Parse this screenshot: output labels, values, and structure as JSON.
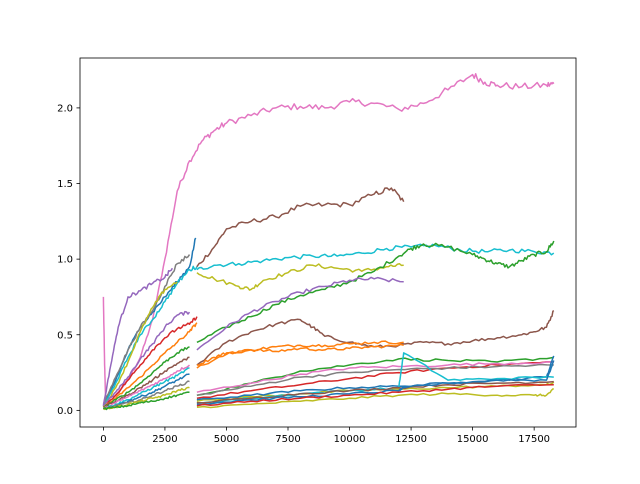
{
  "chart_data": {
    "type": "line",
    "title": "",
    "xlabel": "",
    "ylabel": "",
    "xlim": [
      -950,
      19200
    ],
    "ylim": [
      -0.11,
      2.33
    ],
    "x_ticks": [
      0,
      2500,
      5000,
      7500,
      10000,
      12500,
      15000,
      17500
    ],
    "x_tick_labels": [
      "0",
      "2500",
      "5000",
      "7500",
      "10000",
      "12500",
      "15000",
      "17500"
    ],
    "y_ticks": [
      0.0,
      0.5,
      1.0,
      1.5,
      2.0
    ],
    "y_tick_labels": [
      "0.0",
      "0.5",
      "1.0",
      "1.5",
      "2.0"
    ],
    "grid": false,
    "legend": "none",
    "series": [
      {
        "color": "#e377c2",
        "x": [
          0,
          50,
          100
        ],
        "y": [
          0.75,
          0.3,
          0.02
        ]
      },
      {
        "color": "#e377c2",
        "x": [
          0,
          500,
          1000,
          1500,
          2000,
          2500,
          3000,
          3500,
          4000,
          4500,
          5000,
          6000,
          7000,
          8000,
          9000,
          10000,
          11000,
          12000,
          13000,
          14000,
          15000,
          15500,
          16000,
          17000,
          18000,
          18300
        ],
        "y": [
          0.05,
          0.1,
          0.2,
          0.35,
          0.6,
          1.0,
          1.45,
          1.65,
          1.78,
          1.85,
          1.9,
          1.95,
          2.0,
          2.01,
          2.0,
          2.04,
          2.03,
          1.99,
          2.03,
          2.12,
          2.22,
          2.17,
          2.15,
          2.14,
          2.15,
          2.16
        ]
      },
      {
        "color": "#8c564b",
        "x": [
          3800,
          4500,
          5000,
          6000,
          7000,
          8000,
          9000,
          10000,
          11000,
          11700,
          12200
        ],
        "y": [
          0.95,
          1.08,
          1.2,
          1.25,
          1.28,
          1.35,
          1.36,
          1.36,
          1.43,
          1.47,
          1.38
        ]
      },
      {
        "color": "#17becf",
        "x": [
          3800,
          4500,
          5500,
          6500,
          7500,
          8500,
          9500,
          10500,
          11500,
          12500,
          13500,
          14500,
          15500,
          16500,
          17500,
          18300
        ],
        "y": [
          0.93,
          0.96,
          0.97,
          0.99,
          1.01,
          1.02,
          1.02,
          1.04,
          1.07,
          1.08,
          1.09,
          1.06,
          1.05,
          1.06,
          1.05,
          1.04
        ]
      },
      {
        "color": "#bcbd22",
        "x": [
          3800,
          4500,
          5500,
          6000,
          6500,
          7500,
          8500,
          9500,
          10500,
          11500,
          12200
        ],
        "y": [
          0.91,
          0.87,
          0.82,
          0.8,
          0.86,
          0.91,
          0.96,
          0.94,
          0.92,
          0.95,
          0.96
        ]
      },
      {
        "color": "#2ca02c",
        "x": [
          3800,
          5000,
          6000,
          7000,
          8000,
          9000,
          10000,
          11000,
          12000,
          12500,
          13000,
          14000,
          15000,
          15500,
          16000,
          16500,
          17000,
          17500,
          18000,
          18300
        ],
        "y": [
          0.45,
          0.55,
          0.62,
          0.7,
          0.76,
          0.8,
          0.85,
          0.92,
          1.02,
          1.07,
          1.1,
          1.08,
          1.03,
          1.0,
          0.97,
          0.95,
          0.99,
          1.03,
          1.05,
          1.12
        ]
      },
      {
        "color": "#9467bd",
        "x": [
          3800,
          5000,
          6000,
          7000,
          8000,
          9000,
          10000,
          11000,
          12200
        ],
        "y": [
          0.4,
          0.55,
          0.65,
          0.72,
          0.78,
          0.82,
          0.86,
          0.87,
          0.85
        ]
      },
      {
        "color": "#8c564b",
        "x": [
          3800,
          5000,
          6000,
          7000,
          8000,
          8500,
          9000,
          10000,
          11000,
          12000,
          13000,
          14000,
          15000,
          16000,
          17000,
          17500,
          18000,
          18300
        ],
        "y": [
          0.3,
          0.45,
          0.52,
          0.57,
          0.6,
          0.55,
          0.49,
          0.45,
          0.42,
          0.43,
          0.45,
          0.44,
          0.46,
          0.48,
          0.5,
          0.52,
          0.55,
          0.66
        ]
      },
      {
        "color": "#ff7f0e",
        "x": [
          3800,
          4500,
          5000,
          6000,
          7000,
          8000,
          9000,
          10000,
          11000,
          12200
        ],
        "y": [
          0.3,
          0.35,
          0.38,
          0.4,
          0.42,
          0.43,
          0.43,
          0.44,
          0.45,
          0.45
        ]
      },
      {
        "color": "#ff7f0e",
        "x": [
          3800,
          5000,
          6000,
          7000,
          8000,
          9000,
          10000,
          11000,
          12200
        ],
        "y": [
          0.28,
          0.37,
          0.4,
          0.39,
          0.41,
          0.4,
          0.41,
          0.42,
          0.43
        ]
      },
      {
        "color": "#2ca02c",
        "x": [
          3800,
          6000,
          8000,
          10000,
          12000,
          14000,
          16000,
          18300
        ],
        "y": [
          0.1,
          0.18,
          0.26,
          0.3,
          0.34,
          0.33,
          0.32,
          0.35
        ]
      },
      {
        "color": "#d62728",
        "x": [
          3800,
          6000,
          8000,
          10000,
          12000,
          14000,
          16000,
          18300
        ],
        "y": [
          0.08,
          0.13,
          0.17,
          0.21,
          0.25,
          0.28,
          0.3,
          0.32
        ]
      },
      {
        "color": "#7f7f7f",
        "x": [
          3800,
          6000,
          8000,
          10000,
          12000,
          14000,
          16000,
          18300
        ],
        "y": [
          0.1,
          0.16,
          0.22,
          0.25,
          0.27,
          0.28,
          0.29,
          0.3
        ]
      },
      {
        "color": "#e377c2",
        "x": [
          3800,
          6000,
          8000,
          10000,
          12000,
          14000,
          16000,
          18300
        ],
        "y": [
          0.12,
          0.18,
          0.24,
          0.28,
          0.29,
          0.3,
          0.31,
          0.32
        ]
      },
      {
        "color": "#bcbd22",
        "x": [
          3800,
          6000,
          8000,
          10000,
          12000,
          14000,
          16000,
          18000,
          18300
        ],
        "y": [
          0.06,
          0.09,
          0.11,
          0.13,
          0.14,
          0.15,
          0.16,
          0.17,
          0.18
        ]
      },
      {
        "color": "#1f77b4",
        "x": [
          3800,
          6000,
          8000,
          10000,
          12000,
          14000,
          16000,
          18000,
          18300
        ],
        "y": [
          0.07,
          0.1,
          0.13,
          0.15,
          0.16,
          0.18,
          0.2,
          0.22,
          0.36
        ]
      },
      {
        "color": "#17becf",
        "x": [
          3800,
          6000,
          8000,
          10000,
          12000,
          12200,
          14000,
          16000,
          18300
        ],
        "y": [
          0.05,
          0.08,
          0.11,
          0.13,
          0.15,
          0.38,
          0.2,
          0.21,
          0.22
        ]
      },
      {
        "color": "#8c564b",
        "x": [
          3800,
          6000,
          8000,
          10000,
          12000,
          14000,
          16000,
          18300
        ],
        "y": [
          0.05,
          0.08,
          0.11,
          0.13,
          0.15,
          0.17,
          0.18,
          0.19
        ]
      },
      {
        "color": "#1f77b4",
        "x": [
          3800,
          6000,
          8000,
          10000,
          12000,
          12200,
          14000,
          16000,
          18000,
          18300
        ],
        "y": [
          0.04,
          0.07,
          0.09,
          0.11,
          0.13,
          0.15,
          0.18,
          0.2,
          0.2,
          0.33
        ]
      },
      {
        "color": "#d62728",
        "x": [
          3800,
          6000,
          8000,
          10000,
          12000,
          14000,
          16000,
          18300
        ],
        "y": [
          0.03,
          0.06,
          0.08,
          0.1,
          0.12,
          0.14,
          0.16,
          0.17
        ]
      },
      {
        "color": "#bcbd22",
        "x": [
          3800,
          6000,
          8000,
          10000,
          12000,
          14000,
          16000,
          17500,
          18000,
          18300
        ],
        "y": [
          0.02,
          0.04,
          0.06,
          0.08,
          0.1,
          0.11,
          0.1,
          0.1,
          0.1,
          0.14
        ]
      },
      {
        "color": "#1f77b4",
        "x": [
          0,
          500,
          1000,
          1500,
          2000,
          2500,
          3000,
          3500,
          3750
        ],
        "y": [
          0.03,
          0.2,
          0.4,
          0.55,
          0.65,
          0.75,
          0.85,
          0.95,
          1.14
        ]
      },
      {
        "color": "#7f7f7f",
        "x": [
          0,
          500,
          1000,
          1500,
          2000,
          2500,
          3000,
          3500
        ],
        "y": [
          0.04,
          0.22,
          0.4,
          0.55,
          0.66,
          0.82,
          0.97,
          1.03
        ]
      },
      {
        "color": "#9467bd",
        "x": [
          0,
          300,
          600,
          1000,
          1500,
          2000,
          2500,
          2800
        ],
        "y": [
          0.03,
          0.3,
          0.55,
          0.75,
          0.79,
          0.84,
          0.88,
          0.94
        ]
      },
      {
        "color": "#17becf",
        "x": [
          0,
          500,
          1000,
          1500,
          2000,
          2500,
          3000,
          3500,
          3800
        ],
        "y": [
          0.02,
          0.18,
          0.35,
          0.5,
          0.6,
          0.72,
          0.84,
          0.93,
          0.95
        ]
      },
      {
        "color": "#bcbd22",
        "x": [
          0,
          500,
          1000,
          1500,
          2000,
          2500,
          3000
        ],
        "y": [
          0.02,
          0.15,
          0.32,
          0.52,
          0.68,
          0.8,
          0.85
        ]
      },
      {
        "color": "#9467bd",
        "x": [
          0,
          500,
          1000,
          1500,
          2000,
          2500,
          3000,
          3500
        ],
        "y": [
          0.03,
          0.12,
          0.22,
          0.34,
          0.44,
          0.55,
          0.63,
          0.65
        ]
      },
      {
        "color": "#d62728",
        "x": [
          0,
          500,
          1000,
          1500,
          2000,
          2500,
          3000,
          3500,
          3800
        ],
        "y": [
          0.02,
          0.1,
          0.2,
          0.3,
          0.4,
          0.48,
          0.54,
          0.57,
          0.62
        ]
      },
      {
        "color": "#ff7f0e",
        "x": [
          0,
          500,
          1000,
          1500,
          2000,
          2500,
          3000,
          3500,
          3800
        ],
        "y": [
          0.02,
          0.08,
          0.15,
          0.22,
          0.3,
          0.38,
          0.45,
          0.52,
          0.58
        ]
      },
      {
        "color": "#2ca02c",
        "x": [
          0,
          500,
          1000,
          1500,
          2000,
          2500,
          3000,
          3500
        ],
        "y": [
          0.02,
          0.07,
          0.12,
          0.18,
          0.25,
          0.32,
          0.38,
          0.42
        ]
      },
      {
        "color": "#8c564b",
        "x": [
          0,
          500,
          1000,
          1500,
          2000,
          2500,
          3000,
          3500
        ],
        "y": [
          0.02,
          0.06,
          0.1,
          0.15,
          0.2,
          0.26,
          0.31,
          0.35
        ]
      },
      {
        "color": "#e377c2",
        "x": [
          0,
          500,
          1000,
          1500,
          2000,
          2500,
          3000,
          3500
        ],
        "y": [
          0.01,
          0.05,
          0.09,
          0.13,
          0.17,
          0.21,
          0.26,
          0.3
        ]
      },
      {
        "color": "#17becf",
        "x": [
          0,
          500,
          1000,
          1500,
          2000,
          2500,
          3000,
          3500
        ],
        "y": [
          0.01,
          0.04,
          0.07,
          0.11,
          0.15,
          0.19,
          0.23,
          0.28
        ]
      },
      {
        "color": "#1f77b4",
        "x": [
          0,
          500,
          1000,
          1500,
          2000,
          2500,
          3000,
          3500
        ],
        "y": [
          0.01,
          0.03,
          0.06,
          0.09,
          0.12,
          0.16,
          0.2,
          0.24
        ]
      },
      {
        "color": "#7f7f7f",
        "x": [
          0,
          500,
          1000,
          1500,
          2000,
          2500,
          3000,
          3500
        ],
        "y": [
          0.01,
          0.03,
          0.05,
          0.07,
          0.1,
          0.13,
          0.16,
          0.19
        ]
      },
      {
        "color": "#bcbd22",
        "x": [
          0,
          500,
          1000,
          1500,
          2000,
          2500,
          3000,
          3500
        ],
        "y": [
          0.01,
          0.02,
          0.04,
          0.06,
          0.08,
          0.1,
          0.13,
          0.15
        ]
      },
      {
        "color": "#2ca02c",
        "x": [
          0,
          500,
          1000,
          1500,
          2000,
          2500,
          3000,
          3500
        ],
        "y": [
          0.01,
          0.02,
          0.03,
          0.05,
          0.06,
          0.08,
          0.1,
          0.12
        ]
      }
    ]
  }
}
